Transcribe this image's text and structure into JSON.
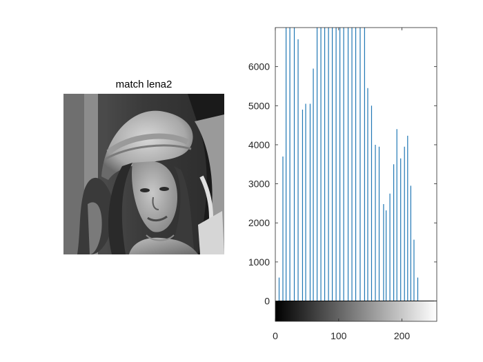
{
  "figure": {
    "background": "#ffffff"
  },
  "image_panel": {
    "title": "match lena2",
    "content": "grayscale portrait photograph"
  },
  "chart_data": {
    "type": "bar",
    "title": "",
    "xlabel": "",
    "ylabel": "",
    "xlim": [
      0,
      255
    ],
    "ylim": [
      -520,
      7000
    ],
    "grid": false,
    "bar_color": "#1f77b4",
    "y_ticks": [
      0,
      1000,
      2000,
      3000,
      4000,
      5000,
      6000
    ],
    "x_ticks": [
      0,
      100,
      200
    ],
    "colorbar": "grayscale gradient 0 to 255 below axis",
    "x": [
      6,
      12,
      17,
      23,
      30,
      36,
      43,
      48,
      55,
      60,
      66,
      72,
      78,
      84,
      90,
      96,
      102,
      108,
      115,
      121,
      127,
      134,
      141,
      146,
      152,
      158,
      164,
      171,
      175,
      181,
      187,
      192,
      198,
      204,
      209,
      214,
      219,
      225
    ],
    "values": [
      600,
      3700,
      7000,
      7000,
      7000,
      6700,
      4900,
      5050,
      5050,
      5950,
      7000,
      7000,
      7000,
      7000,
      7000,
      7000,
      7000,
      7000,
      7000,
      7000,
      7000,
      7000,
      7000,
      5450,
      5000,
      4000,
      3950,
      2480,
      2320,
      2750,
      3500,
      4400,
      3650,
      3950,
      4230,
      2950,
      1570,
      600
    ]
  }
}
